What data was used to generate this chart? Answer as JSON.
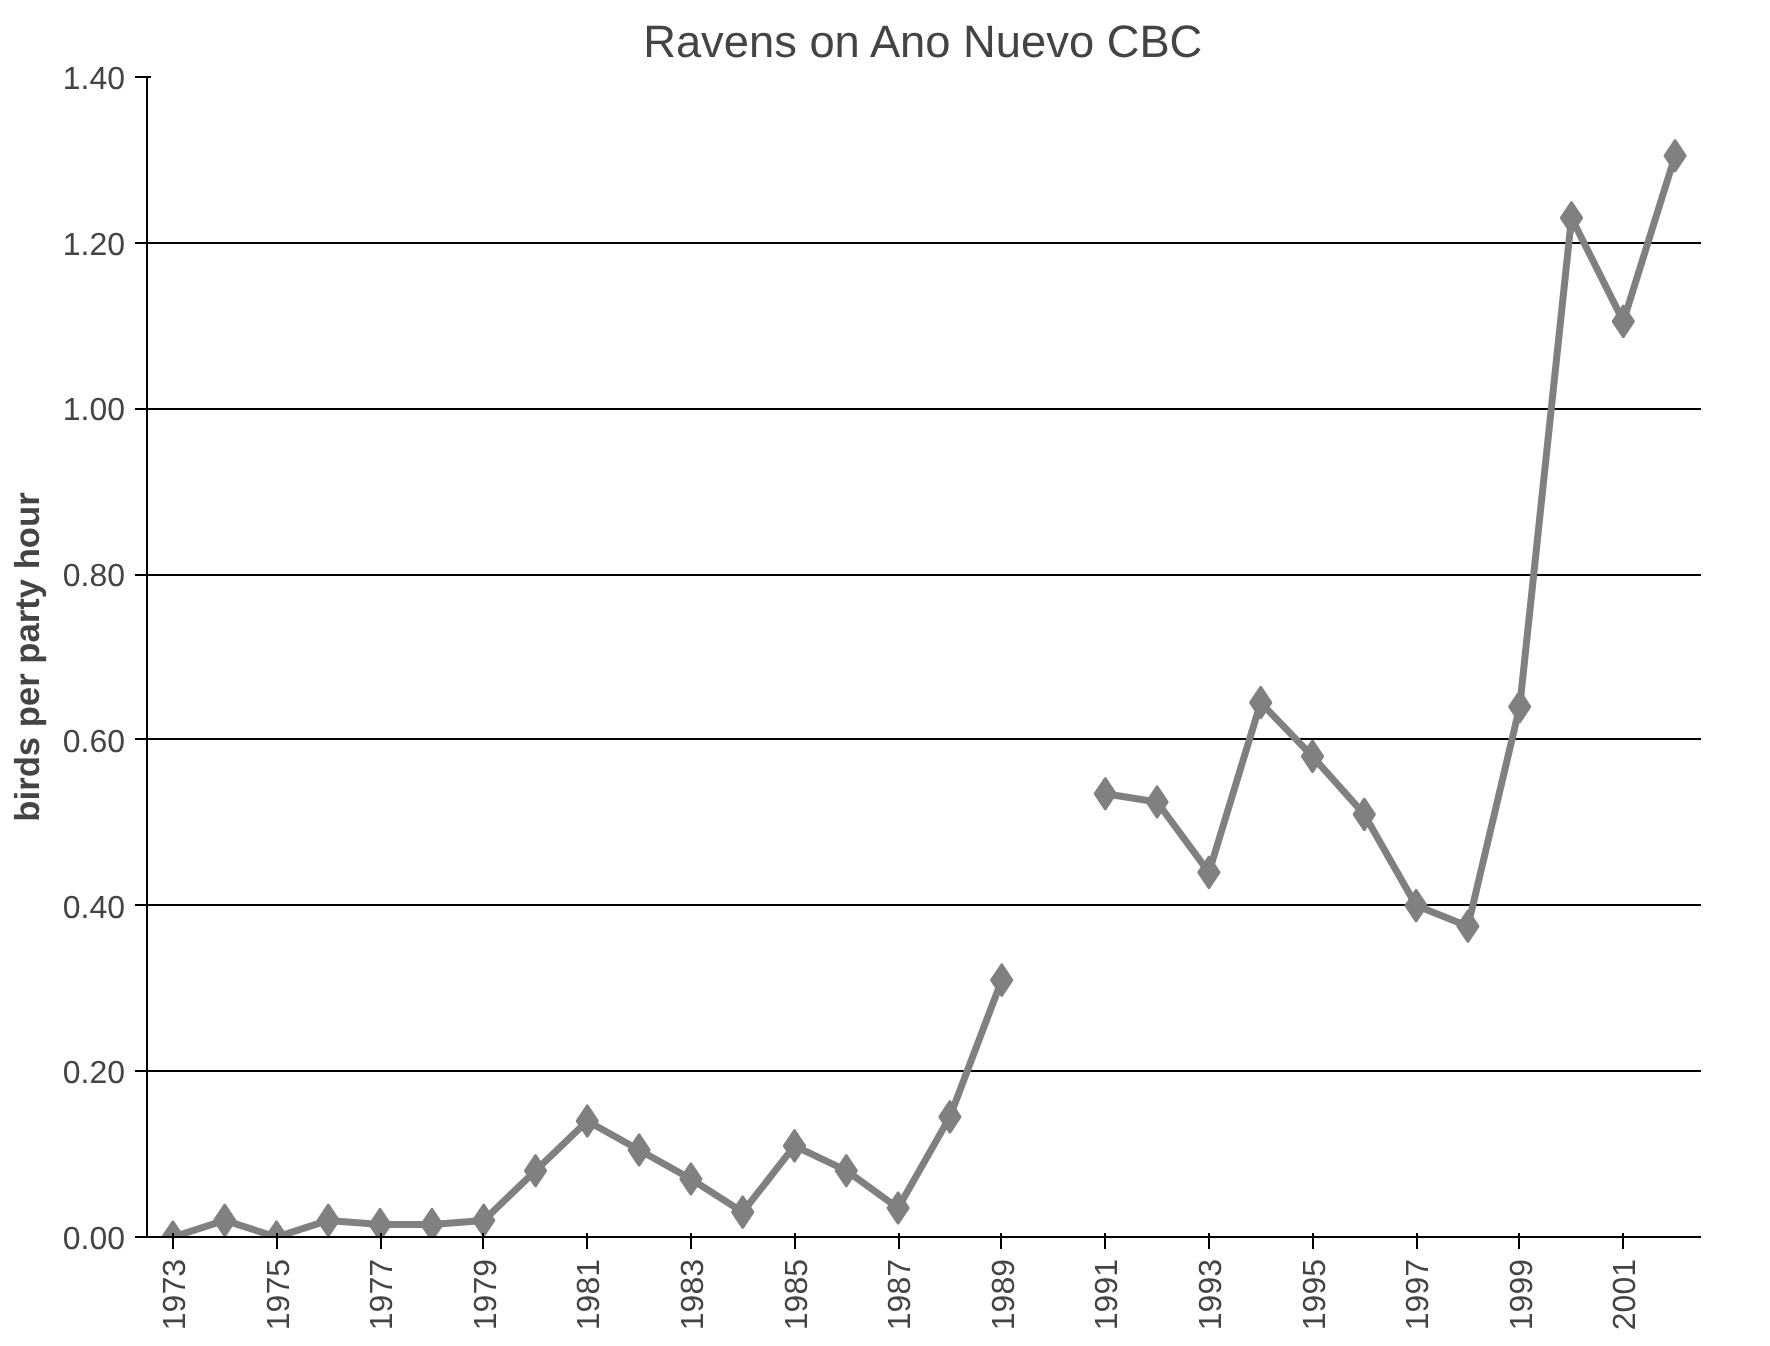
{
  "chart_data": {
    "type": "line",
    "title": "Ravens on Ano Nuevo CBC",
    "ylabel": "birds per party hour",
    "categories": [
      "1973",
      null,
      "1975",
      null,
      "1977",
      null,
      "1979",
      null,
      "1981",
      null,
      "1983",
      null,
      "1985",
      null,
      "1987",
      null,
      "1989",
      null,
      "1991",
      null,
      "1993",
      null,
      "1995",
      null,
      "1997",
      null,
      "1999",
      null,
      "2001",
      null
    ],
    "series": [
      {
        "color": "#808080",
        "values": [
          0,
          0.02,
          0,
          0.02,
          0.015,
          0.015,
          0.02,
          0.08,
          0.14,
          0.105,
          0.07,
          0.03,
          0.11,
          0.08,
          0.035,
          0.145,
          0.31,
          null,
          0.535,
          0.525,
          0.44,
          0.645,
          0.58,
          0.51,
          0.4,
          0.375,
          0.64,
          1.23,
          1.105,
          1.305
        ]
      }
    ],
    "ylim": [
      0,
      1.4
    ],
    "yticks": [
      {
        "value": 0,
        "label": "0.00"
      },
      {
        "value": 0.2,
        "label": "0.20"
      },
      {
        "value": 0.4,
        "label": "0.40"
      },
      {
        "value": 0.6,
        "label": "0.60"
      },
      {
        "value": 0.8,
        "label": "0.80"
      },
      {
        "value": 1.0,
        "label": "1.00"
      },
      {
        "value": 1.2,
        "label": "1.20"
      },
      {
        "value": 1.4,
        "label": "1.40"
      }
    ],
    "grid": "y",
    "marker": "diamond",
    "line_style": "solid"
  }
}
